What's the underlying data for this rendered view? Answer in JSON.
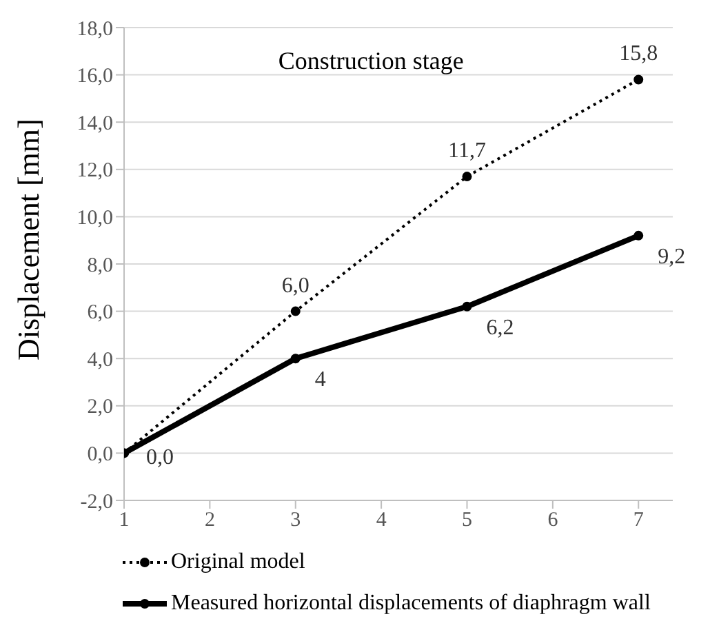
{
  "chart_data": {
    "type": "line",
    "title": "Construction stage",
    "ylabel": "Displacement [mm]",
    "x": [
      1,
      3,
      5,
      7
    ],
    "xlim": [
      1,
      7.4
    ],
    "xticks": [
      1,
      2,
      3,
      4,
      5,
      6,
      7
    ],
    "ylim": [
      -2,
      18
    ],
    "yticks": [
      {
        "value": -2,
        "label": "-2,0"
      },
      {
        "value": 0,
        "label": "0,0"
      },
      {
        "value": 2,
        "label": "2,0"
      },
      {
        "value": 4,
        "label": "4,0"
      },
      {
        "value": 6,
        "label": "6,0"
      },
      {
        "value": 8,
        "label": "8,0"
      },
      {
        "value": 10,
        "label": "10,0"
      },
      {
        "value": 12,
        "label": "12,0"
      },
      {
        "value": 14,
        "label": "14,0"
      },
      {
        "value": 16,
        "label": "16,0"
      },
      {
        "value": 18,
        "label": "18,0"
      }
    ],
    "series": [
      {
        "name": "Original model",
        "color": "#000000",
        "line_style": "dotted",
        "values": [
          0,
          6,
          11.7,
          15.8
        ],
        "value_labels": [
          "0,0",
          "6,0",
          "11,7",
          "15,8"
        ]
      },
      {
        "name": "Measured horizontal displacements of diaphragm wall",
        "color": "#000000",
        "line_style": "solid",
        "values": [
          0,
          4,
          6.2,
          9.2
        ],
        "value_labels": [
          null,
          "4",
          "6,2",
          "9,2"
        ]
      }
    ],
    "grid": "y",
    "legend": "bottom",
    "marker": "circle"
  }
}
